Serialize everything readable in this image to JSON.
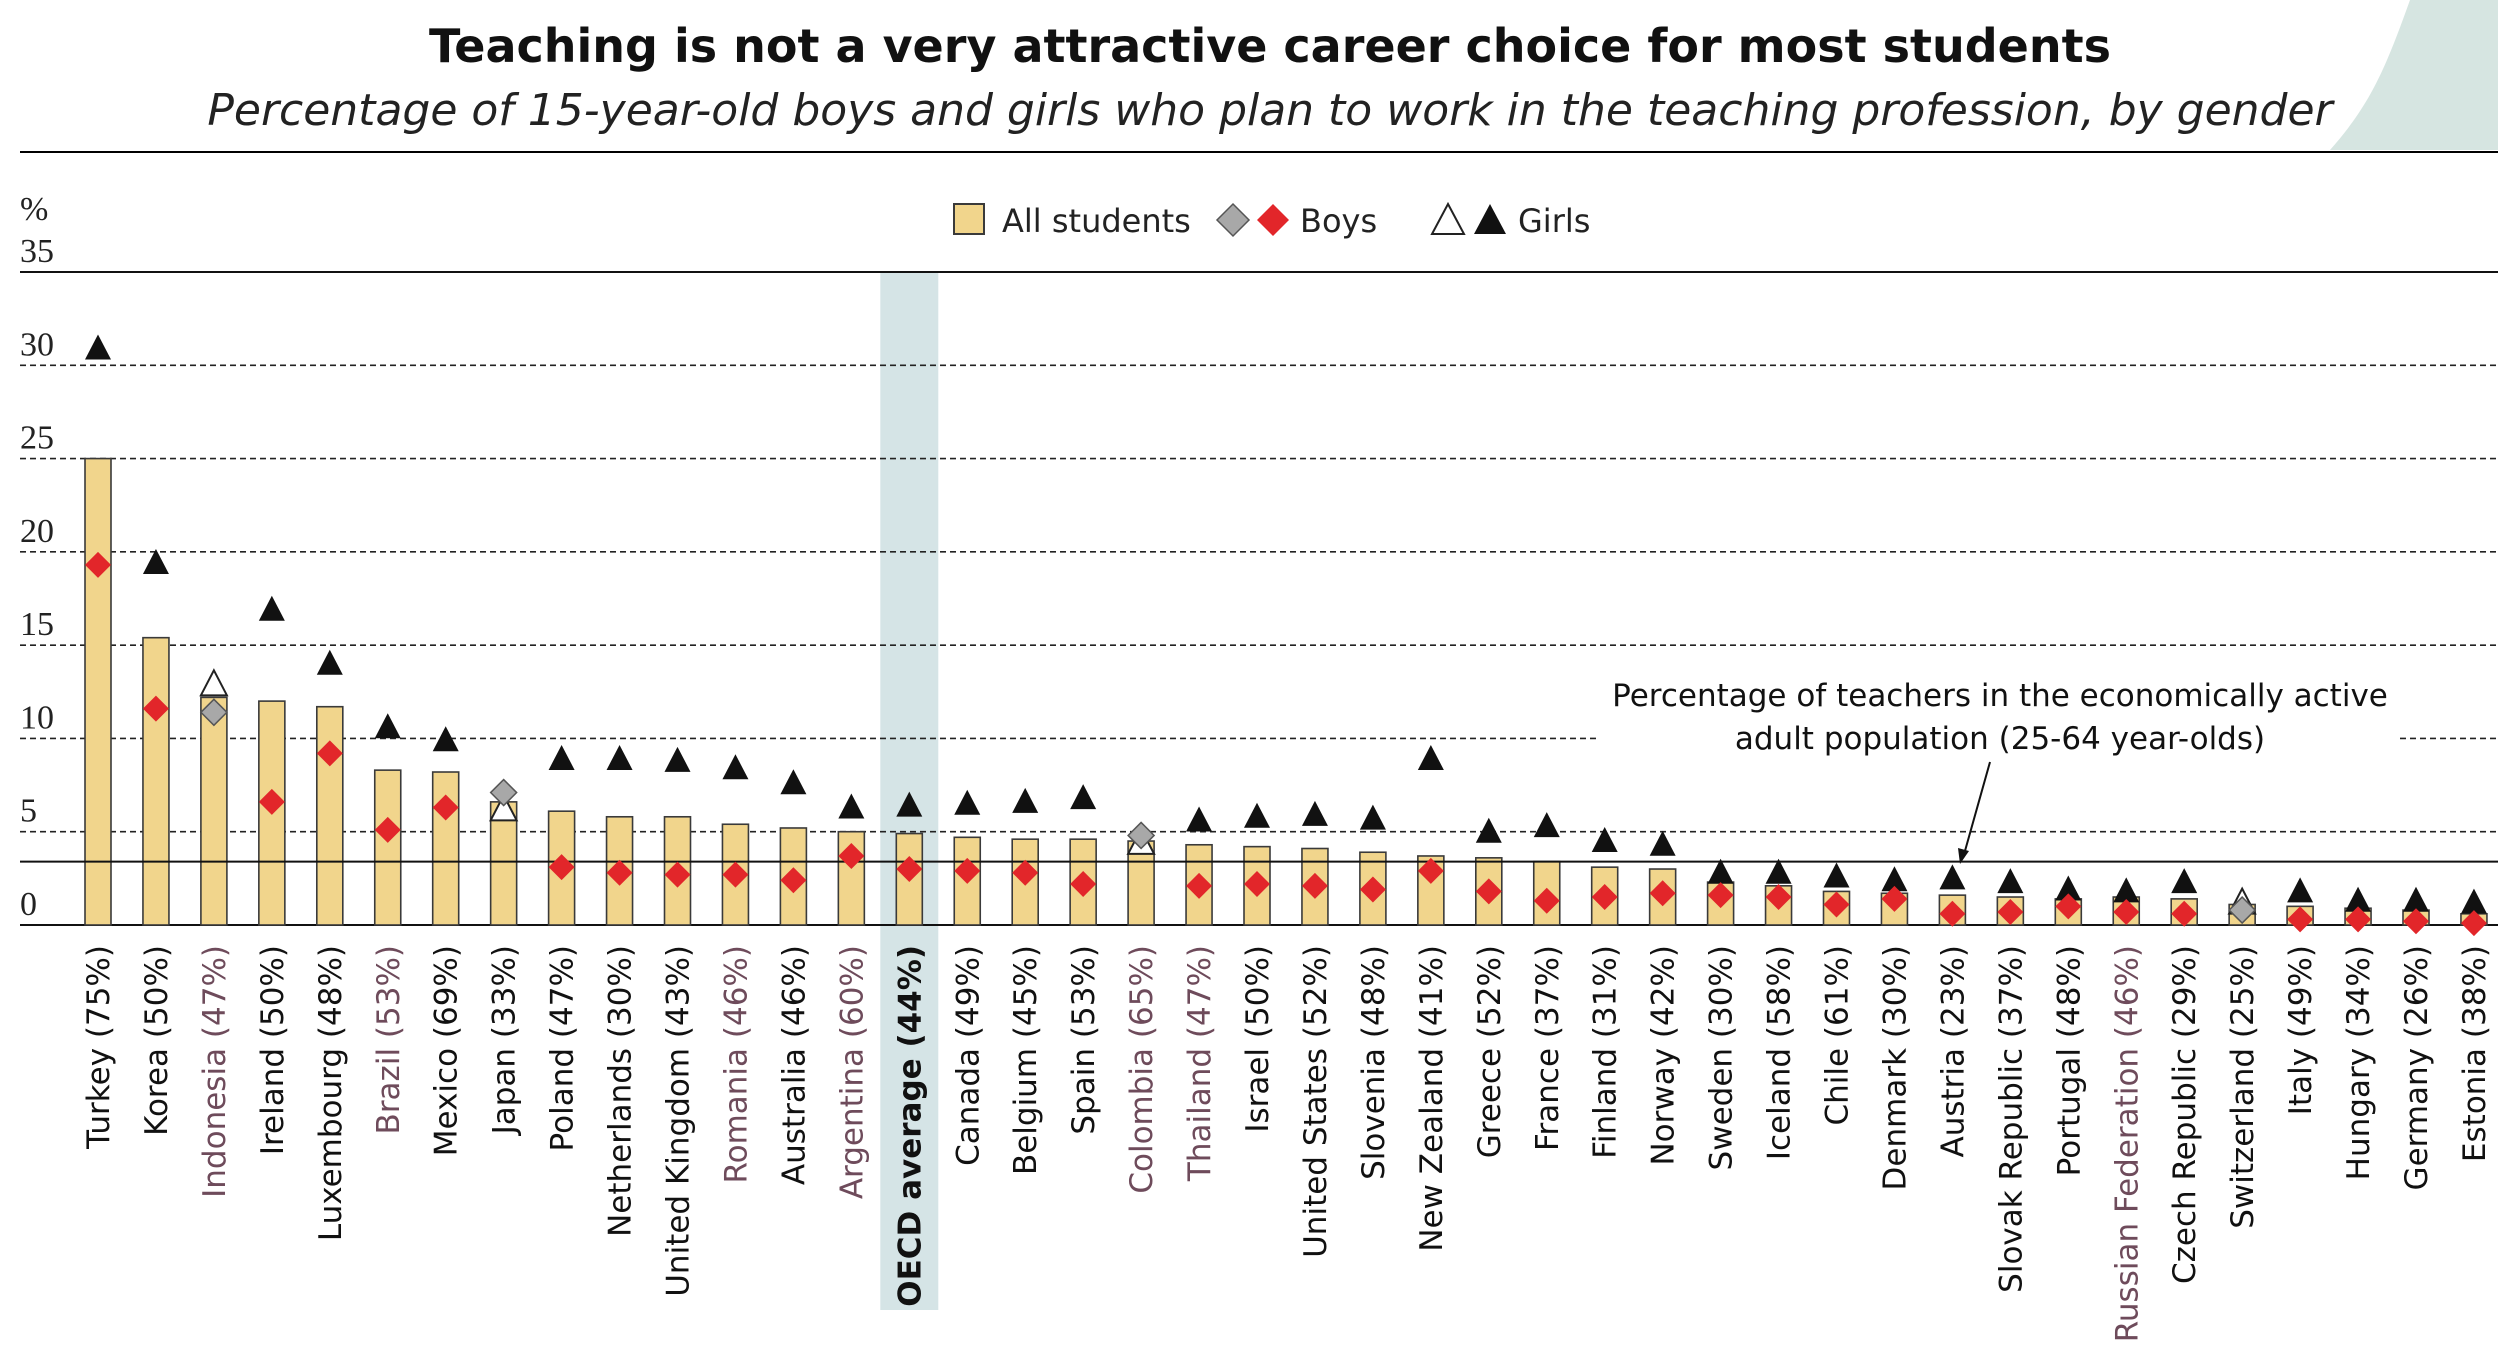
{
  "chart_data": {
    "type": "bar",
    "title": "Teaching is not a very attractive career choice for most students",
    "subtitle": "Percentage of 15-year-old boys and girls who plan to work in the teaching profession, by gender",
    "ylabel": "%",
    "ylim": [
      0,
      35
    ],
    "yticks": [
      "0",
      "5",
      "10",
      "15",
      "20",
      "25",
      "30",
      "35"
    ],
    "grid": true,
    "legend_position": "top-center",
    "legend": {
      "all": "All students",
      "boys": "Boys",
      "girls": "Girls"
    },
    "categories": [
      "Turkey (75%)",
      "Korea (50%)",
      "Indonesia (47%)",
      "Ireland (50%)",
      "Luxembourg (48%)",
      "Brazil (53%)",
      "Mexico (69%)",
      "Japan (33%)",
      "Poland (47%)",
      "Netherlands (30%)",
      "United Kingdom (43%)",
      "Romania (46%)",
      "Australia (46%)",
      "Argentina (60%)",
      "OECD average (44%)",
      "Canada (49%)",
      "Belgium (45%)",
      "Spain (53%)",
      "Colombia (65%)",
      "Thailand (47%)",
      "Israel (50%)",
      "United States (52%)",
      "Slovenia (48%)",
      "New Zealand (41%)",
      "Greece (52%)",
      "France (37%)",
      "Finland (31%)",
      "Norway (42%)",
      "Sweden (30%)",
      "Iceland (58%)",
      "Chile (61%)",
      "Denmark (30%)",
      "Austria (23%)",
      "Slovak Republic (37%)",
      "Portugal (48%)",
      "Russian Federation (46%)",
      "Czech Republic (29%)",
      "Switzerland (25%)",
      "Italy (49%)",
      "Hungary (34%)",
      "Germany (26%)",
      "Estonia (38%)"
    ],
    "partner_categories": [
      "Indonesia (47%)",
      "Brazil (53%)",
      "Romania (46%)",
      "Argentina (60%)",
      "Colombia (65%)",
      "Thailand (47%)",
      "Russian Federation (46%)"
    ],
    "highlight_category": "OECD average (44%)",
    "series": [
      {
        "name": "All students",
        "values": [
          25.0,
          15.4,
          12.2,
          12.0,
          11.7,
          8.3,
          8.2,
          6.6,
          6.1,
          5.8,
          5.8,
          5.4,
          5.2,
          5.0,
          4.9,
          4.7,
          4.6,
          4.6,
          4.5,
          4.3,
          4.2,
          4.1,
          3.9,
          3.7,
          3.6,
          3.4,
          3.1,
          3.0,
          2.3,
          2.1,
          1.8,
          1.7,
          1.6,
          1.5,
          1.4,
          1.5,
          1.4,
          1.1,
          1.0,
          0.9,
          0.8,
          0.6
        ]
      },
      {
        "name": "Boys",
        "values": [
          19.3,
          11.6,
          11.4,
          6.6,
          9.2,
          5.1,
          6.3,
          7.1,
          3.1,
          2.8,
          2.7,
          2.7,
          2.4,
          3.7,
          3.0,
          2.9,
          2.8,
          2.2,
          4.8,
          2.1,
          2.2,
          2.1,
          1.9,
          2.9,
          1.8,
          1.3,
          1.5,
          1.7,
          1.6,
          1.5,
          1.1,
          1.4,
          0.6,
          0.7,
          1.0,
          0.7,
          0.6,
          0.8,
          0.3,
          0.3,
          0.2,
          0.1
        ]
      },
      {
        "name": "Girls",
        "values": [
          30.9,
          19.4,
          12.9,
          16.9,
          14.0,
          10.6,
          9.9,
          6.2,
          8.9,
          8.9,
          8.8,
          8.4,
          7.6,
          6.3,
          6.4,
          6.5,
          6.6,
          6.8,
          4.4,
          5.6,
          5.8,
          5.9,
          5.7,
          8.9,
          5.0,
          5.3,
          4.5,
          4.3,
          2.8,
          2.8,
          2.6,
          2.4,
          2.5,
          2.3,
          1.9,
          1.8,
          2.3,
          1.2,
          1.8,
          1.3,
          1.3,
          1.2
        ]
      }
    ],
    "girls_hollow": [
      "Indonesia (47%)",
      "Japan (33%)",
      "Colombia (65%)",
      "Switzerland (25%)"
    ],
    "boys_grey": [
      "Indonesia (47%)",
      "Japan (33%)",
      "Colombia (65%)",
      "Switzerland (25%)"
    ],
    "reference_line": {
      "value": 3.4,
      "label_line1": "Percentage of teachers in the economically active",
      "label_line2": "adult population (25-64 year-olds)"
    },
    "colors": {
      "bar_fill": "#F1D58C",
      "bar_stroke": "#3a3a3a",
      "boys": "#E2262A",
      "boys_grey": "#A8A8A8",
      "girls": "#111111",
      "highlight_band": "#D5E4E6",
      "partner_text": "#6E4B5B",
      "corner_accent": "#D6E5E1"
    }
  }
}
